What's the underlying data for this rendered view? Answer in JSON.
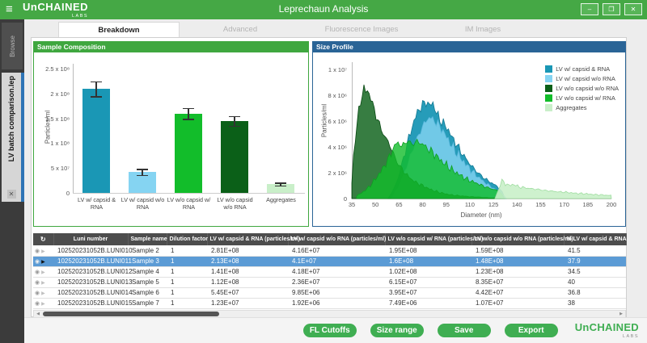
{
  "window": {
    "brand_main": "UnCHAINED",
    "brand_sub": "LABS",
    "title": "Leprechaun Analysis",
    "controls": {
      "minimize": "–",
      "restore": "❐",
      "close": "✕"
    }
  },
  "sidebar": {
    "browse_label": "Browse",
    "file_tab_label": "LV batch comparison.lep",
    "file_tab_close": "✕"
  },
  "tabs": [
    {
      "label": "Breakdown",
      "active": true
    },
    {
      "label": "Advanced",
      "active": false
    },
    {
      "label": "Fluorescence Images",
      "active": false
    },
    {
      "label": "IM Images",
      "active": false
    }
  ],
  "chart_data": [
    {
      "type": "bar",
      "title": "Sample Composition",
      "ylabel": "Particles/ml",
      "ylim": [
        0,
        260000000
      ],
      "categories": [
        "LV w/ capsid & RNA",
        "LV w/ capsid w/o RNA",
        "LV w/o capsid w/ RNA",
        "LV w/o capsid w/o RNA",
        "Aggregates"
      ],
      "values": [
        210000000,
        42000000,
        160000000,
        145000000,
        18000000
      ],
      "errors": [
        15000000,
        6000000,
        11000000,
        10000000,
        3000000
      ],
      "bar_colors": [
        "#1a97b5",
        "#85d4f2",
        "#12bd2a",
        "#0b6018",
        "#c9efc9"
      ],
      "yticks": [
        {
          "value": 0,
          "label": "0"
        },
        {
          "value": 50000000,
          "label": "5 x 10⁷"
        },
        {
          "value": 100000000,
          "label": "1 x 10⁸"
        },
        {
          "value": 150000000,
          "label": "1.5 x 10⁸"
        },
        {
          "value": 200000000,
          "label": "2 x 10⁸"
        },
        {
          "value": 250000000,
          "label": "2.5 x 10⁸"
        }
      ],
      "grid": false
    },
    {
      "type": "area",
      "title": "Size Profile",
      "xlabel": "Diameter (nm)",
      "ylabel": "Particles/ml",
      "xlim": [
        35,
        200
      ],
      "ylim": [
        0,
        10500000
      ],
      "xticks": [
        35,
        50,
        65,
        80,
        95,
        110,
        125,
        140,
        155,
        170,
        185,
        200
      ],
      "yticks": [
        {
          "value": 0,
          "label": "0"
        },
        {
          "value": 2000000,
          "label": "2 x 10⁶"
        },
        {
          "value": 4000000,
          "label": "4 x 10⁶"
        },
        {
          "value": 6000000,
          "label": "6 x 10⁶"
        },
        {
          "value": 8000000,
          "label": "8 x 10⁶"
        },
        {
          "value": 10000000,
          "label": "1 x 10⁷"
        }
      ],
      "legend_position": "top-right",
      "legend": [
        {
          "label": "LV w/ capsid & RNA",
          "color": "#1a97b5"
        },
        {
          "label": "LV w/ capsid w/o RNA",
          "color": "#85d4f2"
        },
        {
          "label": "LV w/o capsid w/o RNA",
          "color": "#0b6018"
        },
        {
          "label": "LV w/o capsid w/ RNA",
          "color": "#12bd2a"
        },
        {
          "label": "Aggregates",
          "color": "#c9efc9"
        }
      ],
      "y_scale": 1000000,
      "series": [
        {
          "name": "LV w/ capsid & RNA",
          "color": "#1a97b5",
          "stroke": "#137a94",
          "opacity": 0.95,
          "points": [
            [
              58,
              0
            ],
            [
              62,
              0.8
            ],
            [
              65,
              1.8
            ],
            [
              68,
              3.2
            ],
            [
              71,
              4.6
            ],
            [
              74,
              5.8
            ],
            [
              77,
              6.8
            ],
            [
              80,
              7.2
            ],
            [
              82,
              7.6
            ],
            [
              84,
              7.1
            ],
            [
              86,
              7.5
            ],
            [
              88,
              6.9
            ],
            [
              90,
              6.3
            ],
            [
              93,
              5.8
            ],
            [
              95,
              5.6
            ],
            [
              98,
              4.9
            ],
            [
              101,
              4.3
            ],
            [
              104,
              3.7
            ],
            [
              108,
              3.0
            ],
            [
              112,
              2.4
            ],
            [
              116,
              1.9
            ],
            [
              120,
              1.5
            ],
            [
              124,
              1.2
            ],
            [
              128,
              0.9
            ],
            [
              131,
              0.4
            ],
            [
              133,
              0
            ]
          ]
        },
        {
          "name": "LV w/ capsid w/o RNA",
          "color": "#85d4f2",
          "stroke": "#5ab8dd",
          "opacity": 0.8,
          "points": [
            [
              60,
              0
            ],
            [
              65,
              1.0
            ],
            [
              70,
              2.5
            ],
            [
              75,
              4.2
            ],
            [
              80,
              5.6
            ],
            [
              84,
              6.3
            ],
            [
              88,
              6.0
            ],
            [
              92,
              5.4
            ],
            [
              96,
              4.6
            ],
            [
              100,
              3.8
            ],
            [
              105,
              3.0
            ],
            [
              110,
              2.3
            ],
            [
              115,
              1.7
            ],
            [
              120,
              1.2
            ],
            [
              125,
              0.8
            ],
            [
              130,
              0.4
            ],
            [
              133,
              0
            ]
          ]
        },
        {
          "name": "LV w/o capsid w/o RNA",
          "color": "#0b6018",
          "stroke": "#084812",
          "opacity": 0.82,
          "points": [
            [
              35,
              1.2
            ],
            [
              36,
              3.0
            ],
            [
              37,
              4.5
            ],
            [
              38,
              5.5
            ],
            [
              40,
              7.2
            ],
            [
              42,
              8.3
            ],
            [
              43,
              8.6
            ],
            [
              44,
              8.2
            ],
            [
              45,
              8.4
            ],
            [
              47,
              7.8
            ],
            [
              49,
              7.0
            ],
            [
              51,
              6.2
            ],
            [
              53,
              5.6
            ],
            [
              55,
              5.0
            ],
            [
              57,
              4.6
            ],
            [
              59,
              4.2
            ],
            [
              61,
              3.6
            ],
            [
              63,
              3.0
            ],
            [
              65,
              2.6
            ],
            [
              68,
              2.1
            ],
            [
              71,
              1.7
            ],
            [
              75,
              1.3
            ],
            [
              80,
              1.0
            ],
            [
              85,
              0.7
            ],
            [
              90,
              0.5
            ],
            [
              95,
              0.35
            ],
            [
              100,
              0.25
            ],
            [
              110,
              0.15
            ],
            [
              120,
              0.08
            ],
            [
              130,
              0
            ]
          ]
        },
        {
          "name": "LV w/o capsid w/ RNA",
          "color": "#12bd2a",
          "stroke": "#0da021",
          "opacity": 0.8,
          "points": [
            [
              38,
              0.2
            ],
            [
              42,
              0.5
            ],
            [
              46,
              0.9
            ],
            [
              50,
              1.5
            ],
            [
              54,
              2.2
            ],
            [
              58,
              3.0
            ],
            [
              61,
              3.8
            ],
            [
              64,
              4.4
            ],
            [
              67,
              4.0
            ],
            [
              70,
              4.5
            ],
            [
              73,
              4.2
            ],
            [
              76,
              4.4
            ],
            [
              79,
              4.3
            ],
            [
              82,
              4.0
            ],
            [
              85,
              3.7
            ],
            [
              88,
              3.4
            ],
            [
              91,
              3.0
            ],
            [
              94,
              2.7
            ],
            [
              97,
              2.4
            ],
            [
              100,
              2.1
            ],
            [
              104,
              1.8
            ],
            [
              108,
              1.5
            ],
            [
              112,
              1.3
            ],
            [
              116,
              1.1
            ],
            [
              120,
              0.9
            ],
            [
              124,
              0.75
            ],
            [
              128,
              0.6
            ],
            [
              130,
              0.4
            ],
            [
              132,
              0
            ]
          ]
        },
        {
          "name": "Aggregates",
          "color": "#c9efc9",
          "stroke": "#9fdda0",
          "opacity": 0.9,
          "points": [
            [
              126,
              0
            ],
            [
              128,
              0.6
            ],
            [
              130,
              1.4
            ],
            [
              132,
              1.2
            ],
            [
              135,
              1.0
            ],
            [
              138,
              1.1
            ],
            [
              141,
              0.9
            ],
            [
              144,
              0.85
            ],
            [
              147,
              0.8
            ],
            [
              150,
              0.75
            ],
            [
              154,
              0.7
            ],
            [
              158,
              0.62
            ],
            [
              162,
              0.58
            ],
            [
              166,
              0.52
            ],
            [
              170,
              0.5
            ],
            [
              174,
              0.45
            ],
            [
              178,
              0.4
            ],
            [
              182,
              0.38
            ],
            [
              186,
              0.34
            ],
            [
              190,
              0.3
            ],
            [
              194,
              0.28
            ],
            [
              197,
              0.25
            ],
            [
              200,
              0.24
            ]
          ]
        }
      ]
    }
  ],
  "table": {
    "columns": [
      "",
      "Luni number",
      "Sample name",
      "Dilution factor",
      "LV w/ capsid & RNA (particles/ml)",
      "LV w/ capsid w/o RNA (particles/ml)",
      "LV w/o capsid w/ RNA (particles/ml)",
      "LV w/o capsid w/o RNA (particles/ml)",
      "% LV w/ capsid & RNA"
    ],
    "selected_index": 1,
    "rows": [
      [
        "102520231052B.LUNI010",
        "Sample 2",
        "1",
        "2.81E+08",
        "4.16E+07",
        "1.95E+08",
        "1.59E+08",
        "41.5"
      ],
      [
        "102520231052B.LUNI011",
        "Sample 3",
        "1",
        "2.13E+08",
        "4.1E+07",
        "1.6E+08",
        "1.48E+08",
        "37.9"
      ],
      [
        "102520231052B.LUNI012",
        "Sample 4",
        "1",
        "1.41E+08",
        "4.18E+07",
        "1.02E+08",
        "1.23E+08",
        "34.5"
      ],
      [
        "102520231052B.LUNI013",
        "Sample 5",
        "1",
        "1.12E+08",
        "2.36E+07",
        "6.15E+07",
        "8.35E+07",
        "40"
      ],
      [
        "102520231052B.LUNI014",
        "Sample 6",
        "1",
        "5.45E+07",
        "9.85E+06",
        "3.95E+07",
        "4.42E+07",
        "36.8"
      ],
      [
        "102520231052B.LUNI015",
        "Sample 7",
        "1",
        "1.23E+07",
        "1.92E+06",
        "7.49E+06",
        "1.07E+07",
        "38"
      ]
    ]
  },
  "footer": {
    "buttons": [
      "FL Cutoffs",
      "Size range",
      "Save",
      "Export"
    ],
    "logo_main": "UnCHAINED",
    "logo_sub": "LABS"
  },
  "colors": {
    "header_green": "#45a845",
    "panel_green": "#3fa73f",
    "panel_blue": "#2a6496",
    "selected_row": "#5b9bd5",
    "button_green": "#3fae52"
  }
}
